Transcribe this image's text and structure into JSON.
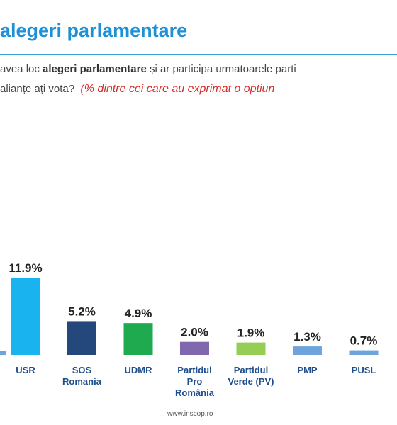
{
  "header": {
    "title": "alegeri parlamentare",
    "question_part1": "avea loc ",
    "question_bold": "alegeri parlamentare",
    "question_part2": " și ar participa urmatoarele parti",
    "question_line2": "alianțe ați vota?",
    "question_note": "(% dintre cei care au exprimat o optiun"
  },
  "colors": {
    "title": "#1e90d6",
    "note": "#d62b2b"
  },
  "chart_data": {
    "type": "bar",
    "categories": [
      [
        "USR"
      ],
      [
        "SOS",
        "Romania"
      ],
      [
        "UDMR"
      ],
      [
        "Partidul",
        "Pro",
        "România"
      ],
      [
        "Partidul",
        "Verde (PV)"
      ],
      [
        "PMP"
      ],
      [
        "PUSL"
      ]
    ],
    "values": [
      11.9,
      5.2,
      4.9,
      2.0,
      1.9,
      1.3,
      0.7
    ],
    "value_labels": [
      "11.9%",
      "5.2%",
      "4.9%",
      "2.0%",
      "1.9%",
      "1.3%",
      "0.7%"
    ],
    "colors": [
      "#19b4f0",
      "#24477c",
      "#1faa4f",
      "#7f68ae",
      "#94ce55",
      "#6ea4dc",
      "#6ea4dc"
    ],
    "label_color": "#1f4e8c"
  },
  "footer": {
    "source": "www.inscop.ro"
  }
}
